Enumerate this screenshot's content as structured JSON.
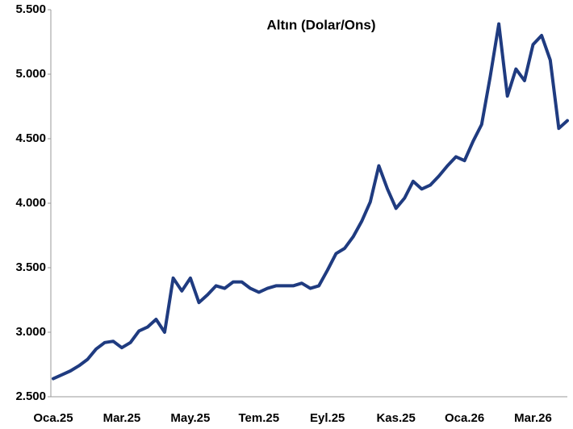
{
  "chart_data": {
    "type": "line",
    "title": "Altın (Dolar/Ons)",
    "categories": [
      "Oca.25",
      null,
      null,
      null,
      null,
      null,
      null,
      null,
      "Mar.25",
      null,
      null,
      null,
      null,
      null,
      null,
      null,
      "May.25",
      null,
      null,
      null,
      null,
      null,
      null,
      null,
      "Tem.25",
      null,
      null,
      null,
      null,
      null,
      null,
      null,
      "Eyl.25",
      null,
      null,
      null,
      null,
      null,
      null,
      null,
      "Kas.25",
      null,
      null,
      null,
      null,
      null,
      null,
      null,
      "Oca.26",
      null,
      null,
      null,
      null,
      null,
      null,
      null,
      "Mar.26",
      null,
      null,
      null,
      null
    ],
    "series": [
      {
        "name": "Altın",
        "color": "#1f3b80",
        "values": [
          2640,
          2670,
          2700,
          2740,
          2790,
          2870,
          2920,
          2930,
          2880,
          2920,
          3010,
          3040,
          3100,
          3000,
          3420,
          3320,
          3420,
          3230,
          3290,
          3360,
          3340,
          3390,
          3390,
          3340,
          3310,
          3340,
          3360,
          3360,
          3360,
          3380,
          3340,
          3360,
          3480,
          3610,
          3650,
          3740,
          3860,
          4010,
          4290,
          4110,
          3960,
          4040,
          4170,
          4110,
          4140,
          4210,
          4290,
          4360,
          4330,
          4480,
          4610,
          4980,
          5390,
          4830,
          5040,
          4950,
          5230,
          5300,
          5110,
          4580,
          4640
        ]
      }
    ],
    "ylim": [
      2500,
      5500
    ],
    "yticks": [
      {
        "value": 2500,
        "label": "2.500"
      },
      {
        "value": 3000,
        "label": "3.000"
      },
      {
        "value": 3500,
        "label": "3.500"
      },
      {
        "value": 4000,
        "label": "4.000"
      },
      {
        "value": 4500,
        "label": "4.500"
      },
      {
        "value": 5000,
        "label": "5.000"
      },
      {
        "value": 5500,
        "label": "5.500"
      }
    ]
  }
}
